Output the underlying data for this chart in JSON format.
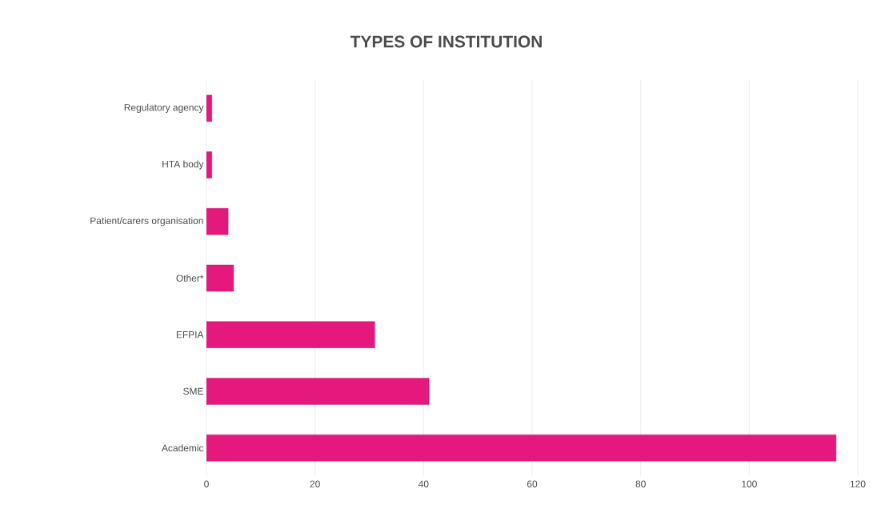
{
  "chart_data": {
    "type": "bar",
    "orientation": "horizontal",
    "title": "TYPES OF INSTITUTION",
    "categories": [
      "Regulatory agency",
      "HTA body",
      "Patient/carers organisation",
      "Other*",
      "EFPIA",
      "SME",
      "Academic"
    ],
    "values": [
      1,
      1,
      4,
      5,
      31,
      41,
      116
    ],
    "color": "#e5197d",
    "xlim": [
      0,
      120
    ],
    "xticks": [
      0,
      20,
      40,
      60,
      80,
      100,
      120
    ],
    "grid": "x"
  }
}
